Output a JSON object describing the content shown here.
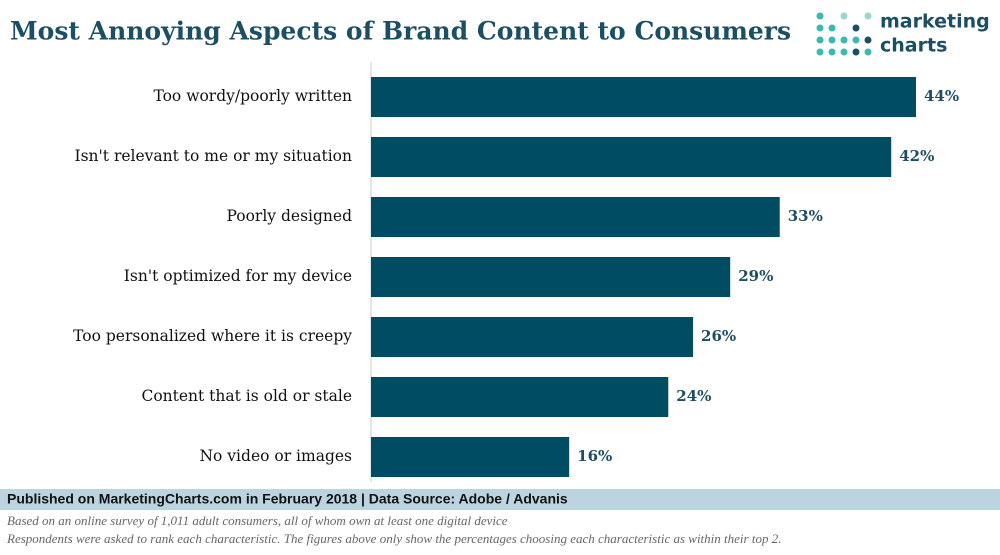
{
  "chart_data": {
    "type": "bar",
    "orientation": "horizontal",
    "title": "Most Annoying Aspects of Brand Content to Consumers",
    "categories": [
      "Too wordy/poorly written",
      "Isn't relevant to me or my situation",
      "Poorly designed",
      "Isn't optimized for my device",
      "Too personalized where it is creepy",
      "Content that is old or stale",
      "No video or images"
    ],
    "values": [
      44,
      42,
      33,
      29,
      26,
      24,
      16
    ],
    "value_labels": [
      "44%",
      "42%",
      "33%",
      "29%",
      "26%",
      "24%",
      "16%"
    ],
    "color": "#004d63",
    "source": "Published on MarketingCharts.com in February 2018 | Data Source: Adobe / Advanis",
    "notes": [
      "Based on an online survey of 1,011 adult consumers, all of whom own at least one digital device",
      "Respondents were asked to rank each characteristic. The figures above only show the percentages choosing each characteristic as within their top 2."
    ]
  },
  "logo": {
    "lines": [
      "marketing",
      "charts"
    ]
  }
}
